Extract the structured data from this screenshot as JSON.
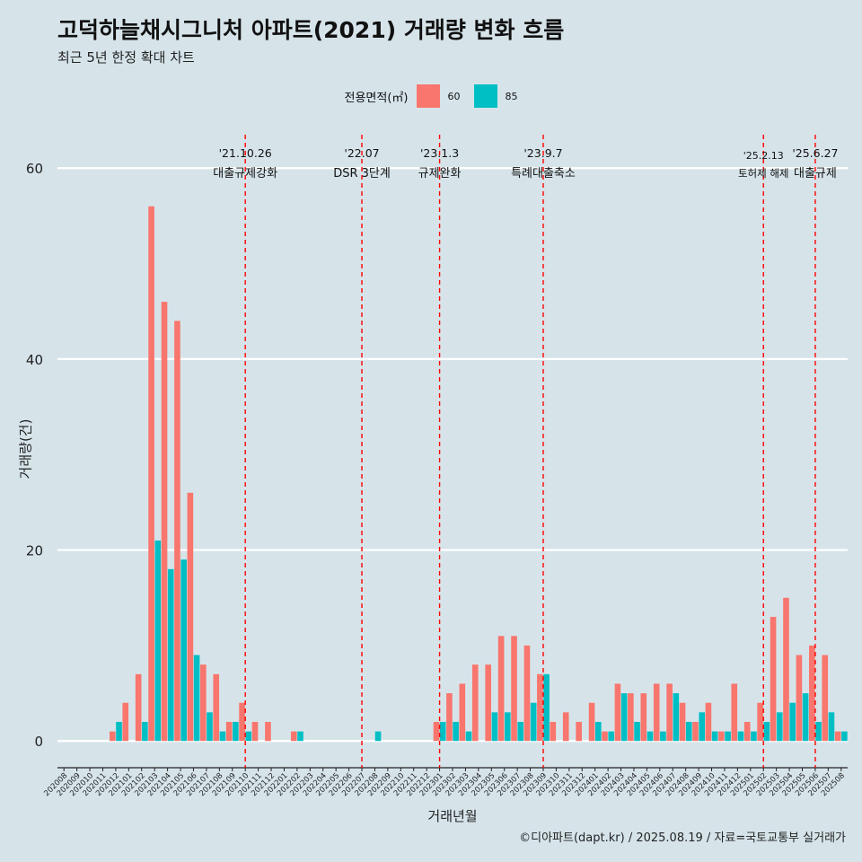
{
  "title": "고덕하늘채시그니처 아파트(2021) 거래량 변화 흐름",
  "subtitle": "최근 5년 한정 확대 차트",
  "caption": "©디아파트(dapt.kr) / 2025.08.19 / 자료=국토교통부 실거래가",
  "legend": {
    "title": "전용면적(㎡)",
    "position": "top-center",
    "entries": [
      {
        "label": "60",
        "color": "#f8766d"
      },
      {
        "label": "85",
        "color": "#00bfc4"
      }
    ]
  },
  "chart_data": {
    "type": "bar",
    "xlabel": "거래년월",
    "ylabel": "거래량(건)",
    "ylim": [
      -2.8,
      63.5
    ],
    "yticks": [
      0,
      20,
      40,
      60
    ],
    "grid": "horizontal major lines",
    "categories": [
      "202008",
      "202009",
      "202010",
      "202011",
      "202012",
      "202101",
      "202102",
      "202103",
      "202104",
      "202105",
      "202106",
      "202107",
      "202108",
      "202109",
      "202110",
      "202111",
      "202112",
      "202201",
      "202202",
      "202203",
      "202204",
      "202205",
      "202206",
      "202207",
      "202208",
      "202209",
      "202210",
      "202211",
      "202212",
      "202301",
      "202302",
      "202303",
      "202304",
      "202305",
      "202306",
      "202307",
      "202308",
      "202309",
      "202310",
      "202311",
      "202312",
      "202401",
      "202402",
      "202403",
      "202404",
      "202405",
      "202406",
      "202407",
      "202408",
      "202409",
      "202410",
      "202411",
      "202412",
      "202501",
      "202502",
      "202503",
      "202504",
      "202505",
      "202506",
      "202507",
      "202508"
    ],
    "series": [
      {
        "name": "60",
        "color": "#f8766d",
        "values": [
          0,
          0,
          0,
          0,
          1,
          4,
          7,
          56,
          46,
          44,
          26,
          8,
          7,
          2,
          4,
          2,
          2,
          0,
          1,
          0,
          0,
          0,
          0,
          0,
          0,
          0,
          0,
          0,
          0,
          2,
          5,
          6,
          8,
          8,
          11,
          11,
          10,
          7,
          2,
          3,
          2,
          4,
          1,
          6,
          5,
          5,
          6,
          6,
          4,
          2,
          4,
          1,
          6,
          2,
          4,
          13,
          15,
          9,
          10,
          9,
          1
        ]
      },
      {
        "name": "85",
        "color": "#00bfc4",
        "values": [
          0,
          0,
          0,
          0,
          2,
          0,
          2,
          21,
          18,
          19,
          9,
          3,
          1,
          2,
          1,
          0,
          0,
          0,
          1,
          0,
          0,
          0,
          0,
          0,
          1,
          0,
          0,
          0,
          0,
          2,
          2,
          1,
          0,
          3,
          3,
          2,
          4,
          7,
          0,
          0,
          0,
          2,
          1,
          5,
          2,
          1,
          1,
          5,
          2,
          3,
          1,
          1,
          1,
          1,
          2,
          3,
          4,
          5,
          2,
          3,
          1
        ]
      }
    ],
    "events": [
      {
        "date": "'21.10.26",
        "label": "대출규제강화",
        "category": "202110"
      },
      {
        "date": "'22.07",
        "label": "DSR 3단계",
        "category": "202207"
      },
      {
        "date": "'23.1.3",
        "label": "규제완화",
        "category": "202301"
      },
      {
        "date": "'23.9.7",
        "label": "특례대출축소",
        "category": "202309"
      },
      {
        "date": "'25.2.13",
        "label": "토허제 해제",
        "category": "202502"
      },
      {
        "date": "'25.6.27",
        "label": "대출규제",
        "category": "202506"
      }
    ]
  }
}
